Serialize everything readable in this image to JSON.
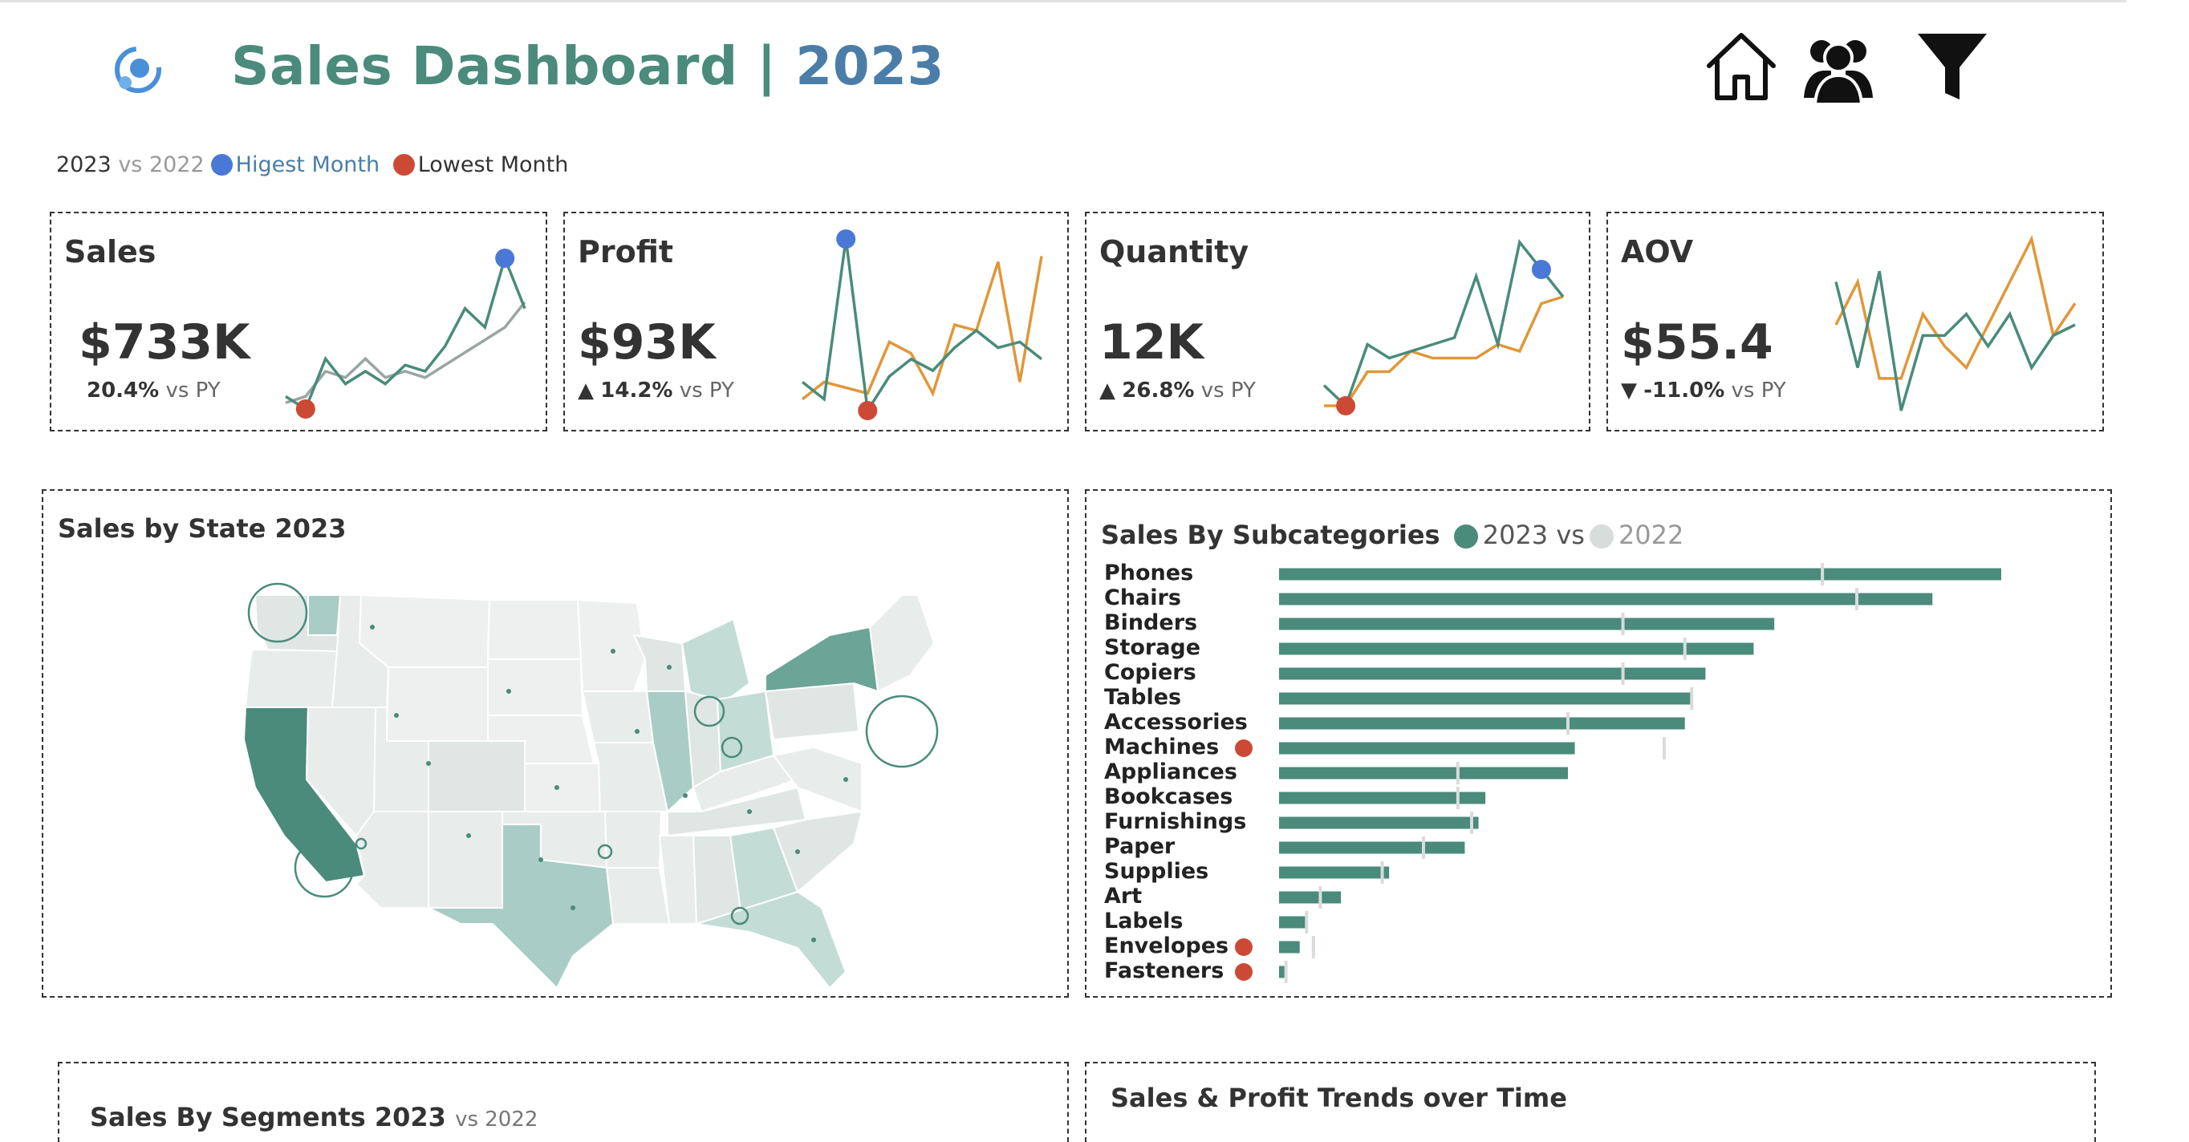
{
  "header": {
    "title": "Sales Dashboard | ",
    "title_year": "2023",
    "icons": [
      "dashboard-logo-icon",
      "home-icon",
      "customers-icon",
      "filter-icon"
    ]
  },
  "legend": {
    "year_current": "2023",
    "vs": "vs",
    "year_prior": "2022",
    "highest": "Higest Month",
    "lowest": "Lowest Month",
    "highest_color": "#4a78d6",
    "lowest_color": "#cc4a35"
  },
  "kpis": [
    {
      "name": "Sales",
      "value": "$733K",
      "arrow": "",
      "delta": "20.4%",
      "vs": "vs PY",
      "current": [
        3,
        1,
        9,
        5,
        7,
        5,
        8,
        7,
        11,
        17,
        14,
        25,
        17
      ],
      "prior": [
        2,
        3,
        7,
        6,
        9,
        6,
        7,
        6,
        8,
        10,
        12,
        14,
        18
      ],
      "high_idx": 11,
      "low_idx": 1
    },
    {
      "name": "Profit",
      "value": "$93K",
      "arrow": "▲",
      "delta": "14.2%",
      "vs": "vs PY",
      "current": [
        5,
        2,
        30,
        0,
        6,
        9,
        7,
        11,
        14,
        11,
        12,
        9
      ],
      "prior": [
        2,
        5,
        4,
        3,
        12,
        10,
        3,
        15,
        14,
        26,
        5,
        27
      ],
      "high_idx": 2,
      "low_idx": 3
    },
    {
      "name": "Quantity",
      "value": "12K",
      "arrow": "▲",
      "delta": "26.8%",
      "vs": "vs PY",
      "current": [
        4,
        1,
        10,
        8,
        9,
        10,
        11,
        20,
        10,
        25,
        21,
        17
      ],
      "prior": [
        1,
        1,
        6,
        6,
        9,
        8,
        8,
        8,
        10,
        9,
        16,
        17
      ],
      "high_idx": 10,
      "low_idx": 1
    },
    {
      "name": "AOV",
      "value": "$55.4",
      "arrow": "▼",
      "delta": "-11.0%",
      "vs": "vs PY",
      "current": [
        15,
        7,
        16,
        3,
        10,
        10,
        12,
        9,
        12,
        7,
        10,
        11
      ],
      "prior": [
        11,
        15,
        6,
        6,
        12,
        9,
        7,
        11,
        15,
        19,
        10,
        13
      ],
      "high_idx": null,
      "low_idx": null
    }
  ],
  "map_panel": {
    "title": "Sales by State 2023"
  },
  "subcategories": {
    "title": "Sales By Subcategories",
    "legend_current": "2023 vs",
    "legend_prior": "2022",
    "current_color": "#4a8b7b",
    "prior_color": "#d8dcdb",
    "items": [
      {
        "name": "Phones",
        "current": 105,
        "prior": 79,
        "low": false
      },
      {
        "name": "Chairs",
        "current": 95,
        "prior": 84,
        "low": false
      },
      {
        "name": "Binders",
        "current": 72,
        "prior": 50,
        "low": false
      },
      {
        "name": "Storage",
        "current": 69,
        "prior": 59,
        "low": false
      },
      {
        "name": "Copiers",
        "current": 62,
        "prior": 50,
        "low": false
      },
      {
        "name": "Tables",
        "current": 60,
        "prior": 60,
        "low": false
      },
      {
        "name": "Accessories",
        "current": 59,
        "prior": 42,
        "low": false
      },
      {
        "name": "Machines",
        "current": 43,
        "prior": 56,
        "low": true
      },
      {
        "name": "Appliances",
        "current": 42,
        "prior": 26,
        "low": false
      },
      {
        "name": "Bookcases",
        "current": 30,
        "prior": 26,
        "low": false
      },
      {
        "name": "Furnishings",
        "current": 29,
        "prior": 28,
        "low": false
      },
      {
        "name": "Paper",
        "current": 27,
        "prior": 21,
        "low": false
      },
      {
        "name": "Supplies",
        "current": 16,
        "prior": 15,
        "low": false
      },
      {
        "name": "Art",
        "current": 9,
        "prior": 6,
        "low": false
      },
      {
        "name": "Labels",
        "current": 4,
        "prior": 4,
        "low": false
      },
      {
        "name": "Envelopes",
        "current": 3,
        "prior": 5,
        "low": true
      },
      {
        "name": "Fasteners",
        "current": 1,
        "prior": 1,
        "low": true
      }
    ]
  },
  "segments_panel": {
    "title": "Sales By Segments 2023",
    "sub": "vs 2022"
  },
  "trends_panel": {
    "title": "Sales & Profit Trends over Time"
  }
}
